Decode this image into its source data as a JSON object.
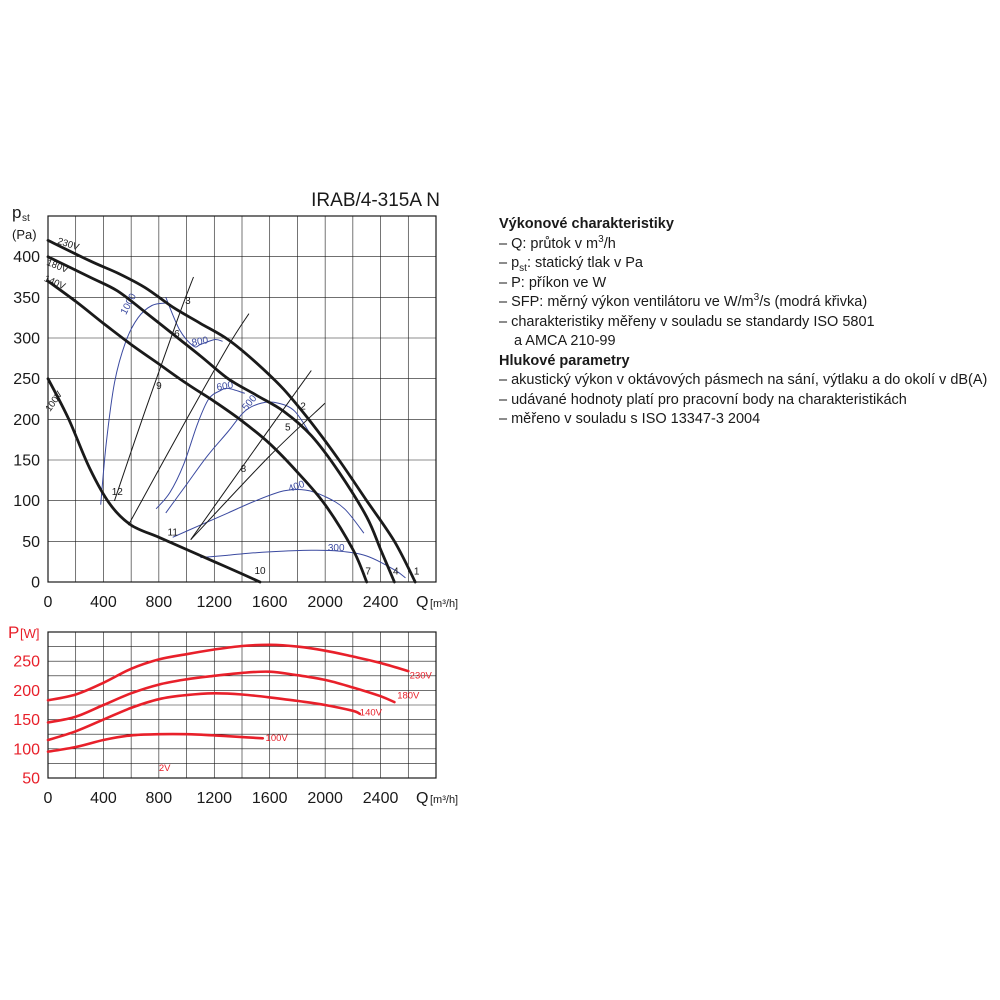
{
  "title": "IRAB/4-315A N",
  "legend": {
    "section1_title": "Výkonové charakteristiky",
    "q_prefix": "– Q: průtok v m",
    "q_sup": "3",
    "q_suffix": "/h",
    "pst_prefix": "– p",
    "pst_sub": "st",
    "pst_suffix": ": statický tlak v Pa",
    "p_line": "– P: příkon ve W",
    "sfp_prefix": "– SFP: měrný výkon ventilátoru ve W/m",
    "sfp_sup": "3",
    "sfp_suffix": "/s (modrá křivka)",
    "iso5801_line1": "– charakteristiky měřeny v souladu se standardy ISO 5801",
    "iso5801_line2": "a AMCA 210-99",
    "section2_title": "Hlukové parametry",
    "noise1": "– akustický výkon v oktávových pásmech na sání, výtlaku a do okolí v dB(A)",
    "noise2": "– udávané hodnoty platí pro pracovní body na charakteristikách",
    "noise3": "– měřeno v souladu s ISO 13347-3 2004"
  },
  "colors": {
    "pressure_curve": "#1a1a1a",
    "sfp_curve": "#3b4aa0",
    "power_curve": "#e8202a",
    "grid": "#1a1a1a",
    "text": "#1a1a1a",
    "power_axis_text": "#e8202a"
  },
  "chart_data": [
    {
      "type": "line",
      "title": "IRAB/4-315A N",
      "ylabel_main": "p",
      "ylabel_sub": "st",
      "yunit": "(Pa)",
      "xlabel_main": "Q",
      "xlabel_unit": "[m³/h]",
      "xlim": [
        0,
        2800
      ],
      "ylim": [
        0,
        450
      ],
      "xticks": [
        0,
        400,
        800,
        1200,
        1600,
        2000,
        2400
      ],
      "yticks": [
        0,
        50,
        100,
        150,
        200,
        250,
        300,
        350,
        400
      ],
      "grid": true,
      "series": [
        {
          "name": "230V",
          "points": [
            [
              0,
              420
            ],
            [
              300,
              395
            ],
            [
              500,
              380
            ],
            [
              700,
              362
            ],
            [
              900,
              338
            ],
            [
              1100,
              318
            ],
            [
              1300,
              298
            ],
            [
              1500,
              270
            ],
            [
              1700,
              237
            ],
            [
              1900,
              196
            ],
            [
              2100,
              150
            ],
            [
              2300,
              100
            ],
            [
              2500,
              50
            ],
            [
              2650,
              0
            ]
          ]
        },
        {
          "name": "180V",
          "points": [
            [
              0,
              400
            ],
            [
              300,
              375
            ],
            [
              500,
              358
            ],
            [
              700,
              332
            ],
            [
              900,
              305
            ],
            [
              1100,
              278
            ],
            [
              1300,
              250
            ],
            [
              1500,
              230
            ],
            [
              1700,
              210
            ],
            [
              1900,
              180
            ],
            [
              2100,
              135
            ],
            [
              2300,
              80
            ],
            [
              2400,
              40
            ],
            [
              2500,
              0
            ]
          ]
        },
        {
          "name": "140V",
          "points": [
            [
              0,
              370
            ],
            [
              200,
              345
            ],
            [
              400,
              318
            ],
            [
              600,
              292
            ],
            [
              800,
              268
            ],
            [
              1000,
              244
            ],
            [
              1200,
              222
            ],
            [
              1400,
              198
            ],
            [
              1600,
              170
            ],
            [
              1800,
              135
            ],
            [
              2000,
              95
            ],
            [
              2200,
              40
            ],
            [
              2300,
              0
            ]
          ]
        },
        {
          "name": "100V",
          "points": [
            [
              0,
              250
            ],
            [
              150,
              200
            ],
            [
              300,
              140
            ],
            [
              450,
              95
            ],
            [
              600,
              70
            ],
            [
              800,
              55
            ],
            [
              1000,
              40
            ],
            [
              1200,
              25
            ],
            [
              1400,
              10
            ],
            [
              1530,
              0
            ]
          ]
        }
      ],
      "sfp_curves": [
        {
          "label": "1000",
          "points": [
            [
              380,
              95
            ],
            [
              420,
              170
            ],
            [
              480,
              245
            ],
            [
              560,
              295
            ],
            [
              650,
              325
            ],
            [
              750,
              340
            ],
            [
              850,
              343
            ]
          ]
        },
        {
          "label": "800",
          "points": [
            [
              850,
              350
            ],
            [
              950,
              310
            ],
            [
              1050,
              290
            ],
            [
              1100,
              292
            ],
            [
              1200,
              298
            ],
            [
              1260,
              296
            ]
          ]
        },
        {
          "label": "600",
          "points": [
            [
              780,
              90
            ],
            [
              880,
              110
            ],
            [
              980,
              145
            ],
            [
              1080,
              195
            ],
            [
              1160,
              225
            ],
            [
              1240,
              235
            ],
            [
              1300,
              238
            ],
            [
              1420,
              232
            ]
          ]
        },
        {
          "label": "500",
          "points": [
            [
              850,
              85
            ],
            [
              1000,
              120
            ],
            [
              1150,
              155
            ],
            [
              1300,
              185
            ],
            [
              1420,
              210
            ],
            [
              1540,
              220
            ],
            [
              1660,
              220
            ],
            [
              1780,
              210
            ],
            [
              1900,
              180
            ]
          ]
        },
        {
          "label": "400",
          "points": [
            [
              900,
              55
            ],
            [
              1100,
              70
            ],
            [
              1300,
              85
            ],
            [
              1500,
              100
            ],
            [
              1700,
              112
            ],
            [
              1860,
              113
            ],
            [
              2000,
              105
            ],
            [
              2140,
              90
            ],
            [
              2280,
              60
            ]
          ]
        },
        {
          "label": "300",
          "points": [
            [
              1100,
              30
            ],
            [
              1300,
              33
            ],
            [
              1500,
              36
            ],
            [
              1700,
              38
            ],
            [
              1900,
              39
            ],
            [
              2100,
              38
            ],
            [
              2300,
              32
            ],
            [
              2500,
              15
            ],
            [
              2580,
              5
            ]
          ]
        }
      ],
      "system_curves": [
        {
          "points": [
            [
              480,
              100
            ],
            [
              700,
              210
            ],
            [
              950,
              330
            ],
            [
              1050,
              375
            ]
          ]
        },
        {
          "points": [
            [
              580,
              70
            ],
            [
              1000,
              200
            ],
            [
              1300,
              290
            ],
            [
              1450,
              330
            ]
          ]
        },
        {
          "points": [
            [
              1030,
              52
            ],
            [
              1500,
              165
            ],
            [
              1900,
              260
            ]
          ]
        },
        {
          "points": [
            [
              1030,
              52
            ],
            [
              1600,
              155
            ],
            [
              2000,
              220
            ]
          ]
        }
      ],
      "point_labels": [
        {
          "label": "1",
          "x": 2660,
          "y": 9
        },
        {
          "label": "2",
          "x": 1840,
          "y": 212
        },
        {
          "label": "3",
          "x": 1010,
          "y": 342
        },
        {
          "label": "4",
          "x": 2510,
          "y": 9
        },
        {
          "label": "5",
          "x": 1730,
          "y": 186
        },
        {
          "label": "6",
          "x": 930,
          "y": 301
        },
        {
          "label": "7",
          "x": 2310,
          "y": 9
        },
        {
          "label": "8",
          "x": 1410,
          "y": 135
        },
        {
          "label": "9",
          "x": 800,
          "y": 237
        },
        {
          "label": "10",
          "x": 1530,
          "y": 10
        },
        {
          "label": "11",
          "x": 900,
          "y": 57
        },
        {
          "label": "12",
          "x": 500,
          "y": 107
        }
      ],
      "curve_labels": [
        {
          "label": "230V",
          "x": 140,
          "y": 412,
          "rot": 18
        },
        {
          "label": "180V",
          "x": 60,
          "y": 385,
          "rot": 22
        },
        {
          "label": "140V",
          "x": 40,
          "y": 365,
          "rot": 24
        },
        {
          "label": "100V",
          "x": 60,
          "y": 220,
          "rot": -55
        }
      ]
    },
    {
      "type": "line",
      "ylabel_main": "P",
      "yunit": "[W]",
      "xlabel_main": "Q",
      "xlabel_unit": "[m³/h]",
      "xlim": [
        0,
        2800
      ],
      "ylim": [
        50,
        300
      ],
      "xticks": [
        0,
        400,
        800,
        1200,
        1600,
        2000,
        2400
      ],
      "yticks": [
        50,
        100,
        150,
        200,
        250
      ],
      "grid": true,
      "series": [
        {
          "name": "230V",
          "points": [
            [
              0,
              183
            ],
            [
              200,
              193
            ],
            [
              400,
              213
            ],
            [
              600,
              237
            ],
            [
              800,
              253
            ],
            [
              1000,
              262
            ],
            [
              1200,
              270
            ],
            [
              1400,
              276
            ],
            [
              1600,
              278
            ],
            [
              1800,
              275
            ],
            [
              2000,
              268
            ],
            [
              2200,
              258
            ],
            [
              2400,
              247
            ],
            [
              2600,
              233
            ]
          ]
        },
        {
          "name": "180V",
          "points": [
            [
              0,
              145
            ],
            [
              200,
              155
            ],
            [
              400,
              175
            ],
            [
              600,
              195
            ],
            [
              800,
              210
            ],
            [
              1000,
              219
            ],
            [
              1200,
              225
            ],
            [
              1400,
              230
            ],
            [
              1600,
              232
            ],
            [
              1800,
              226
            ],
            [
              2000,
              218
            ],
            [
              2200,
              205
            ],
            [
              2400,
              190
            ],
            [
              2500,
              180
            ]
          ]
        },
        {
          "name": "140V",
          "points": [
            [
              0,
              115
            ],
            [
              200,
              130
            ],
            [
              400,
              150
            ],
            [
              600,
              170
            ],
            [
              800,
              185
            ],
            [
              1000,
              192
            ],
            [
              1200,
              195
            ],
            [
              1400,
              193
            ],
            [
              1600,
              188
            ],
            [
              1800,
              182
            ],
            [
              2000,
              175
            ],
            [
              2200,
              165
            ],
            [
              2250,
              160
            ]
          ]
        },
        {
          "name": "100V",
          "points": [
            [
              0,
              95
            ],
            [
              200,
              103
            ],
            [
              400,
              115
            ],
            [
              600,
              123
            ],
            [
              800,
              125
            ],
            [
              1000,
              125
            ],
            [
              1200,
              123
            ],
            [
              1400,
              120
            ],
            [
              1550,
              118
            ]
          ]
        }
      ],
      "curve_labels": [
        {
          "label": "230V",
          "x": 2610,
          "y": 220
        },
        {
          "label": "180V",
          "x": 2520,
          "y": 186
        },
        {
          "label": "140V",
          "x": 2250,
          "y": 157
        },
        {
          "label": "100V",
          "x": 1570,
          "y": 113
        },
        {
          "label": "2V",
          "x": 800,
          "y": 62
        }
      ]
    }
  ]
}
